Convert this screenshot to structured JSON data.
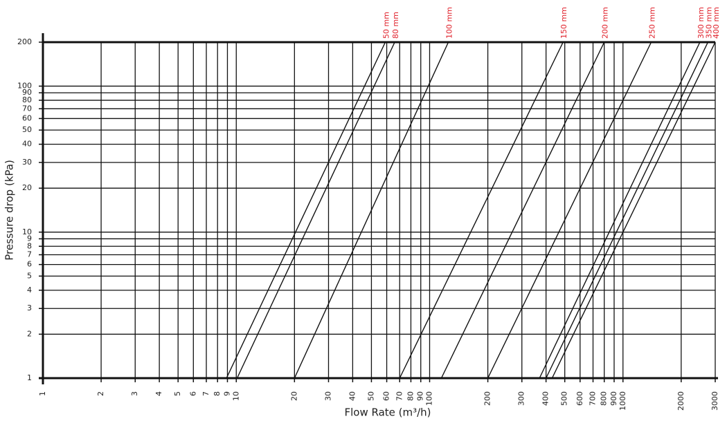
{
  "chart_data": {
    "type": "line",
    "x_label": "Flow Rate (m³/h)",
    "y_label": "Pressure drop (kPa)",
    "xscale": "log",
    "yscale": "log",
    "grid": true,
    "label_color": "#e0202a",
    "xlim": [
      1,
      3000
    ],
    "ylim": [
      1,
      200
    ],
    "xticks": [
      1,
      2,
      3,
      4,
      5,
      6,
      7,
      8,
      9,
      10,
      20,
      30,
      40,
      50,
      60,
      70,
      80,
      90,
      100,
      200,
      300,
      400,
      500,
      600,
      700,
      800,
      900,
      1000,
      2000,
      3000
    ],
    "yticks": [
      1,
      2,
      3,
      4,
      5,
      6,
      7,
      8,
      9,
      10,
      20,
      30,
      40,
      50,
      60,
      70,
      80,
      90,
      100,
      200
    ],
    "series": [
      {
        "name": "50 mm",
        "color": "#111111",
        "x": [
          8.9,
          59
        ],
        "values": [
          1,
          200
        ]
      },
      {
        "name": "80 mm",
        "color": "#111111",
        "x": [
          10.1,
          66
        ],
        "values": [
          1,
          200
        ]
      },
      {
        "name": "100 mm",
        "color": "#111111",
        "x": [
          20,
          125
        ],
        "values": [
          1,
          200
        ]
      },
      {
        "name": "150 mm",
        "color": "#111111",
        "x": [
          70,
          490
        ],
        "values": [
          1,
          200
        ]
      },
      {
        "name": "200 mm",
        "color": "#111111",
        "x": [
          115,
          800
        ],
        "values": [
          1,
          200
        ]
      },
      {
        "name": "250 mm",
        "color": "#111111",
        "x": [
          200,
          1400
        ],
        "values": [
          1,
          200
        ]
      },
      {
        "name": "300 mm",
        "color": "#111111",
        "x": [
          370,
          2500
        ],
        "values": [
          1,
          200
        ]
      },
      {
        "name": "350 mm",
        "color": "#111111",
        "x": [
          400,
          2750
        ],
        "values": [
          1,
          200
        ]
      },
      {
        "name": "400 mm",
        "color": "#111111",
        "x": [
          430,
          3000
        ],
        "values": [
          1,
          200
        ]
      }
    ]
  }
}
